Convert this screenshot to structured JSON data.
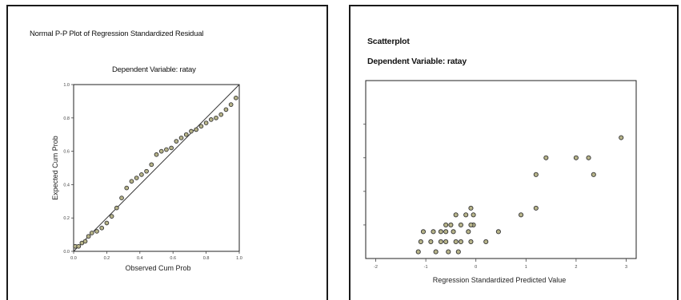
{
  "left_panel": {
    "title": "Normal P-P Plot of Regression Standardized Residual",
    "subtitle": "Dependent Variable: ratay"
  },
  "right_panel": {
    "title": "Scatterplot",
    "subtitle": "Dependent Variable: ratay"
  },
  "chart_data": [
    {
      "type": "scatter",
      "title": "Normal P-P Plot of Regression Standardized Residual",
      "subtitle": "Dependent Variable: ratay",
      "xlabel": "Observed Cum Prob",
      "ylabel": "Expected Cum Prob",
      "xlim": [
        0,
        1
      ],
      "ylim": [
        0,
        1
      ],
      "xticks": [
        "0.0",
        "0.2",
        "0.4",
        "0.6",
        "0.8",
        "1.0"
      ],
      "yticks": [
        "0.0",
        "0.2",
        "0.4",
        "0.6",
        "0.8",
        "1.0"
      ],
      "reference_line": [
        [
          0,
          0
        ],
        [
          1,
          1
        ]
      ],
      "grid": false,
      "points": [
        [
          0.01,
          0.03
        ],
        [
          0.03,
          0.03
        ],
        [
          0.05,
          0.05
        ],
        [
          0.07,
          0.06
        ],
        [
          0.09,
          0.09
        ],
        [
          0.11,
          0.11
        ],
        [
          0.14,
          0.12
        ],
        [
          0.17,
          0.14
        ],
        [
          0.2,
          0.17
        ],
        [
          0.23,
          0.21
        ],
        [
          0.26,
          0.26
        ],
        [
          0.29,
          0.32
        ],
        [
          0.32,
          0.38
        ],
        [
          0.35,
          0.42
        ],
        [
          0.38,
          0.44
        ],
        [
          0.41,
          0.46
        ],
        [
          0.44,
          0.48
        ],
        [
          0.47,
          0.52
        ],
        [
          0.5,
          0.58
        ],
        [
          0.53,
          0.6
        ],
        [
          0.56,
          0.61
        ],
        [
          0.59,
          0.62
        ],
        [
          0.62,
          0.66
        ],
        [
          0.65,
          0.68
        ],
        [
          0.68,
          0.7
        ],
        [
          0.71,
          0.72
        ],
        [
          0.74,
          0.73
        ],
        [
          0.77,
          0.75
        ],
        [
          0.8,
          0.77
        ],
        [
          0.83,
          0.79
        ],
        [
          0.86,
          0.8
        ],
        [
          0.89,
          0.82
        ],
        [
          0.92,
          0.85
        ],
        [
          0.95,
          0.88
        ],
        [
          0.98,
          0.92
        ]
      ]
    },
    {
      "type": "scatter",
      "title": "Scatterplot",
      "subtitle": "Dependent Variable: ratay",
      "xlabel": "Regression Standardized Predicted Value",
      "ylabel": "",
      "xlim": [
        -2.2,
        3.2
      ],
      "ylim": [
        0,
        5.3
      ],
      "xticks": [
        "-2",
        "-1",
        "0",
        "1",
        "2",
        "3"
      ],
      "grid": false,
      "points": [
        [
          -1.15,
          0.2
        ],
        [
          -0.8,
          0.2
        ],
        [
          -0.55,
          0.2
        ],
        [
          -0.35,
          0.2
        ],
        [
          -1.1,
          0.5
        ],
        [
          -0.9,
          0.5
        ],
        [
          -0.7,
          0.5
        ],
        [
          -0.6,
          0.5
        ],
        [
          -0.4,
          0.5
        ],
        [
          -0.3,
          0.5
        ],
        [
          -0.1,
          0.5
        ],
        [
          0.2,
          0.5
        ],
        [
          -1.05,
          0.8
        ],
        [
          -0.85,
          0.8
        ],
        [
          -0.7,
          0.8
        ],
        [
          -0.6,
          0.8
        ],
        [
          -0.45,
          0.8
        ],
        [
          -0.15,
          0.8
        ],
        [
          0.45,
          0.8
        ],
        [
          -0.6,
          1.0
        ],
        [
          -0.5,
          1.0
        ],
        [
          -0.3,
          1.0
        ],
        [
          -0.05,
          1.0
        ],
        [
          -0.1,
          1.0
        ],
        [
          -0.4,
          1.3
        ],
        [
          -0.2,
          1.3
        ],
        [
          -0.05,
          1.3
        ],
        [
          0.9,
          1.3
        ],
        [
          -0.1,
          1.5
        ],
        [
          1.2,
          1.5
        ],
        [
          1.2,
          2.5
        ],
        [
          2.35,
          2.5
        ],
        [
          1.4,
          3.0
        ],
        [
          2.0,
          3.0
        ],
        [
          2.25,
          3.0
        ],
        [
          2.9,
          3.6
        ]
      ]
    }
  ]
}
